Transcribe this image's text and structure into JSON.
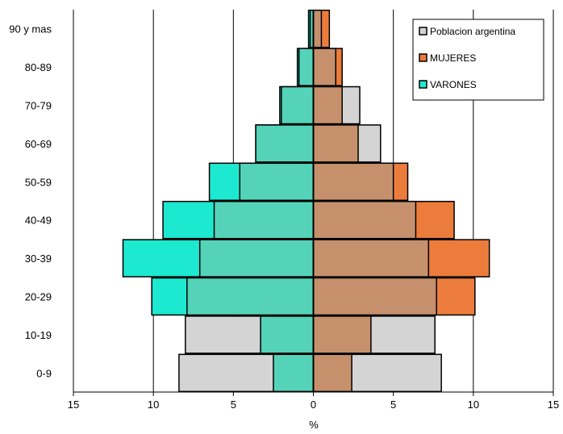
{
  "chart_data": {
    "type": "bar",
    "orientation": "horizontal",
    "categories": [
      "90 y mas",
      "80-89",
      "70-79",
      "60-69",
      "50-59",
      "40-49",
      "30-39",
      "20-29",
      "10-19",
      "0-9"
    ],
    "xlabel": "%",
    "xlim": [
      -15,
      15
    ],
    "x_ticks": [
      -15,
      -10,
      -5,
      0,
      5,
      10,
      15
    ],
    "x_tick_labels": [
      "15",
      "10",
      "5",
      "0",
      "5",
      "10",
      "15"
    ],
    "grid": "vertical",
    "legend_position": "top-right",
    "series": [
      {
        "name": "Poblacion argentina",
        "color": "#d4d4d4",
        "left": [
          0.2,
          0.9,
          2.0,
          3.6,
          4.6,
          6.2,
          7.1,
          7.9,
          8.0,
          8.4
        ],
        "right": [
          0.5,
          1.4,
          2.9,
          4.2,
          5.0,
          6.4,
          7.2,
          7.7,
          7.6,
          8.0
        ]
      },
      {
        "name": "MUJERES",
        "color": "#ec7c3c",
        "values": [
          1.0,
          1.8,
          1.8,
          2.8,
          5.9,
          8.8,
          11.0,
          10.1,
          3.6,
          2.4
        ]
      },
      {
        "name": "VARONES",
        "color": "#1de8d0",
        "values": [
          0.3,
          1.0,
          2.1,
          3.6,
          6.5,
          9.4,
          11.9,
          10.1,
          3.3,
          2.5
        ]
      }
    ],
    "overlap_colors": {
      "mujeres": "#c7906c",
      "varones": "#55d3b8"
    }
  }
}
